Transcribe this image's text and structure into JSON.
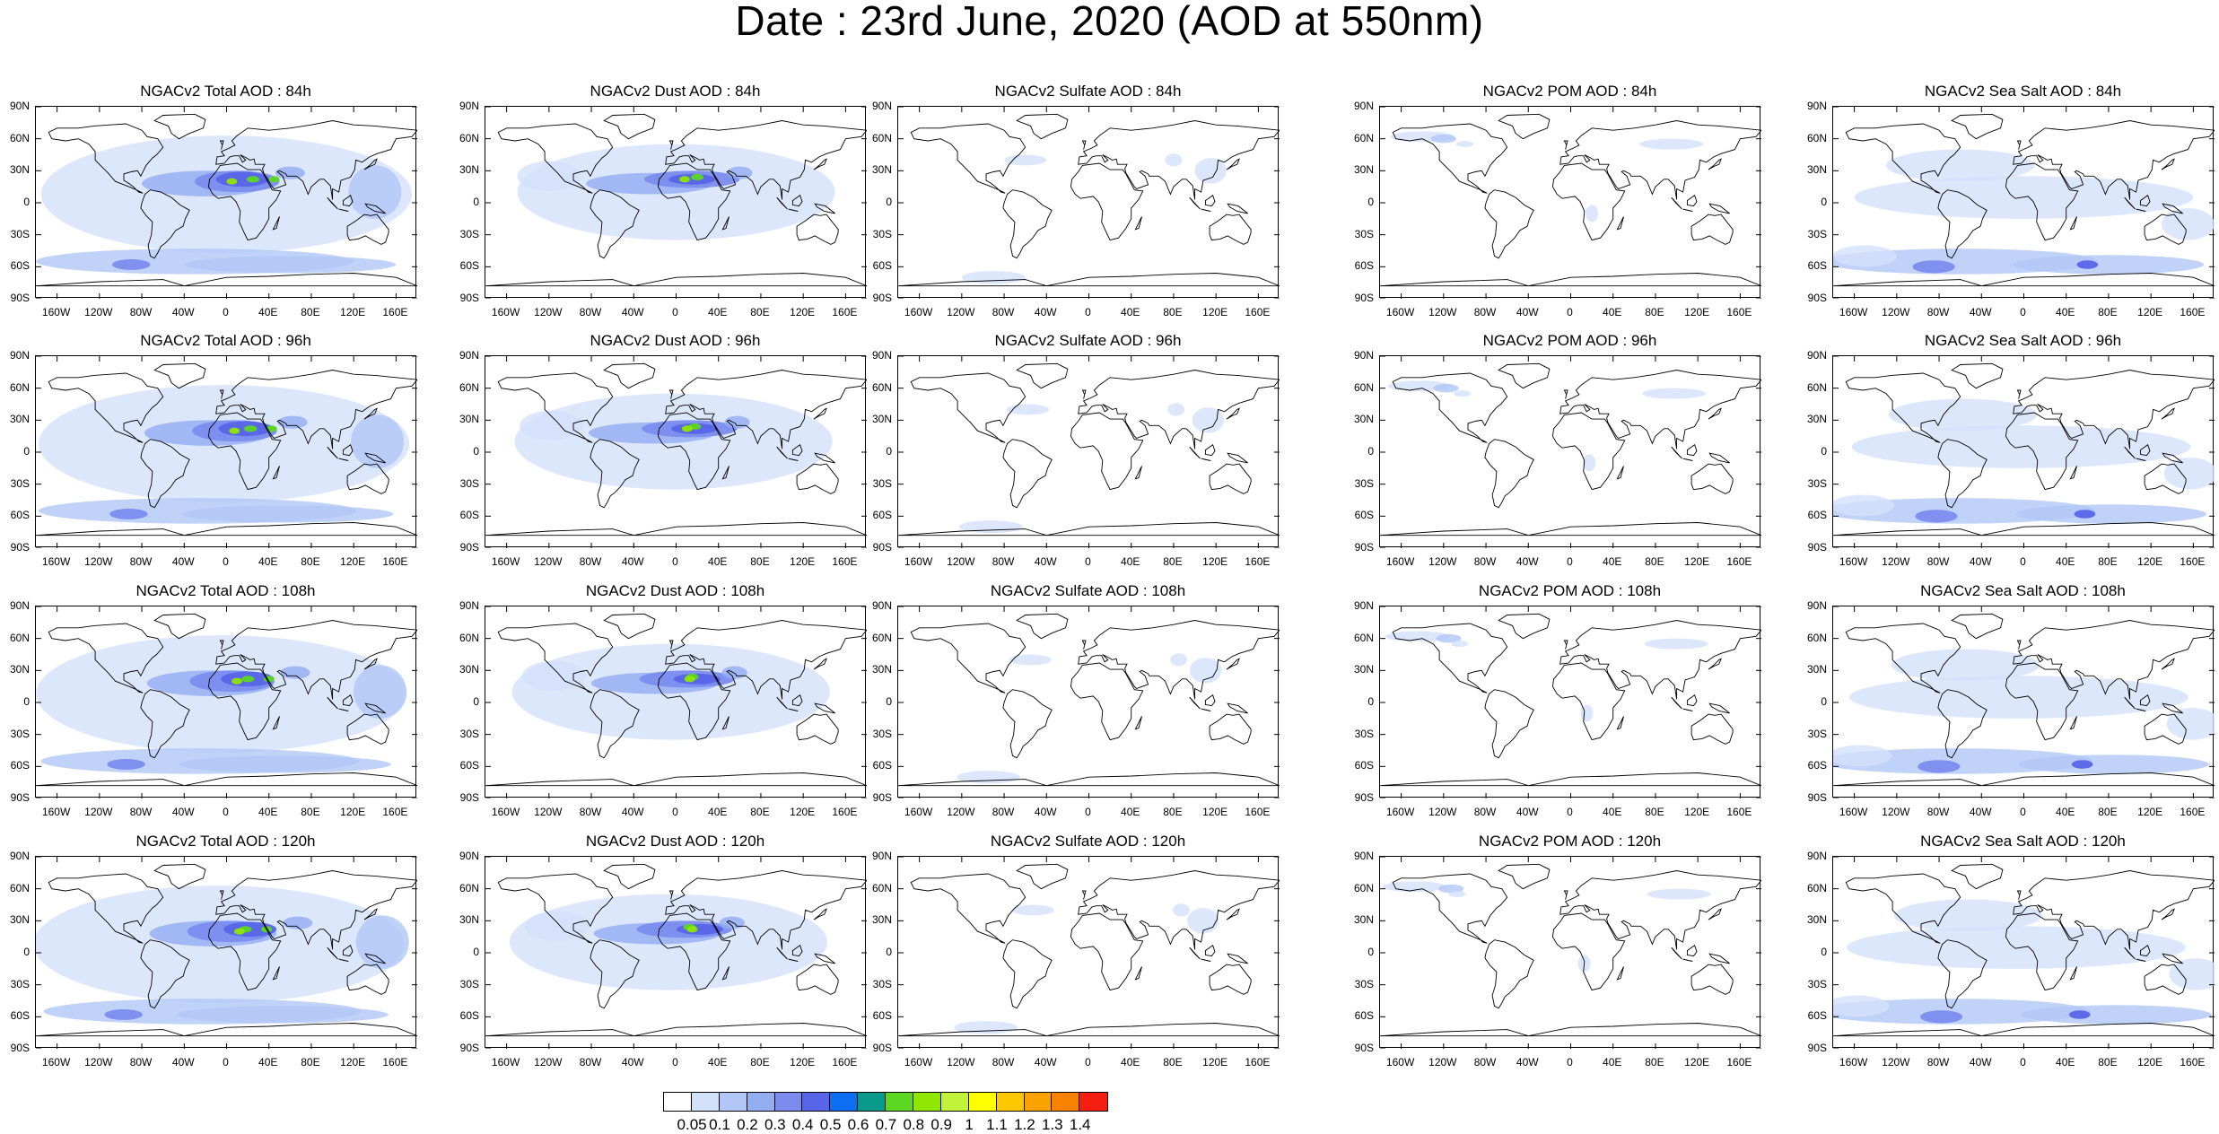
{
  "title": "Date : 23rd June, 2020 (AOD at 550nm)",
  "panels": [
    [
      "NGACv2 Total AOD : 84h",
      "NGACv2 Dust AOD : 84h",
      "NGACv2 Sulfate AOD : 84h",
      "NGACv2 POM AOD : 84h",
      "NGACv2 Sea Salt AOD : 84h"
    ],
    [
      "NGACv2 Total AOD : 96h",
      "NGACv2 Dust AOD : 96h",
      "NGACv2 Sulfate AOD : 96h",
      "NGACv2 POM AOD : 96h",
      "NGACv2 Sea Salt AOD : 96h"
    ],
    [
      "NGACv2 Total AOD : 108h",
      "NGACv2 Dust AOD : 108h",
      "NGACv2 Sulfate AOD : 108h",
      "NGACv2 POM AOD : 108h",
      "NGACv2 Sea Salt AOD : 108h"
    ],
    [
      "NGACv2 Total AOD : 120h",
      "NGACv2 Dust AOD : 120h",
      "NGACv2 Sulfate AOD : 120h",
      "NGACv2 POM AOD : 120h",
      "NGACv2 Sea Salt  AOD : 120h"
    ]
  ],
  "lat_labels": [
    "90N",
    "60N",
    "30N",
    "0",
    "30S",
    "60S",
    "90S"
  ],
  "lon_labels": [
    "160W",
    "120W",
    "80W",
    "40W",
    "0",
    "40E",
    "80E",
    "120E",
    "160E"
  ],
  "colorbar": {
    "labels": [
      "0.05",
      "0.1",
      "0.2",
      "0.3",
      "0.4",
      "0.5",
      "0.6",
      "0.7",
      "0.8",
      "0.9",
      "1",
      "1.1",
      "1.2",
      "1.3",
      "1.4"
    ],
    "colors": [
      "#ffffff",
      "#d4e1fb",
      "#b2c7f6",
      "#93adf1",
      "#7b8cee",
      "#5965e8",
      "#0c6ff2",
      "#0a9a8c",
      "#5cd722",
      "#8fe600",
      "#c2f139",
      "#fefe00",
      "#fdc800",
      "#faa300",
      "#f88200",
      "#f51f10"
    ]
  },
  "aerosol_colors": {
    "total": "#93adf1",
    "dust": "#b2c7f6",
    "sulfate": "#d4e1fb",
    "pom": "#d4e1fb",
    "seasalt": "#b2c7f6"
  }
}
